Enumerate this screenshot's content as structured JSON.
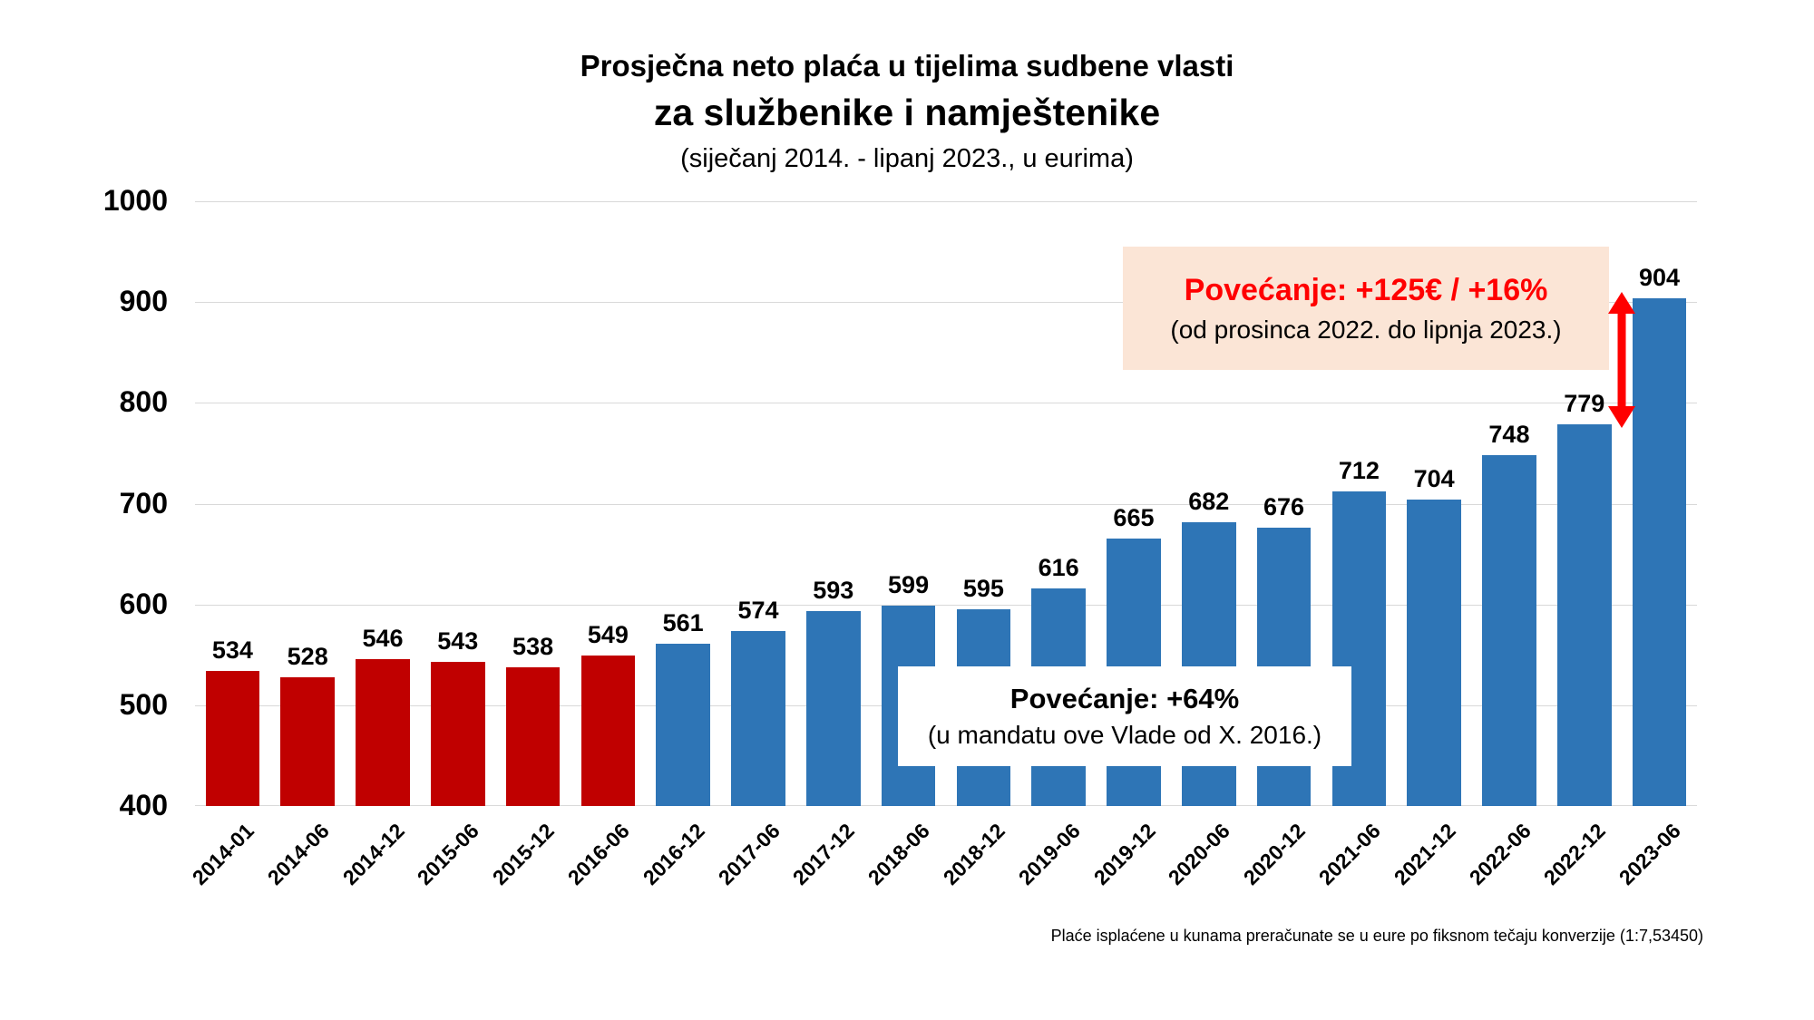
{
  "chart_data": {
    "type": "bar",
    "title_lines": [
      "Prosječna neto plaća u tijelima sudbene vlasti",
      "za službenike i namještenike",
      "(siječanj 2014. - lipanj 2023., u eurima)"
    ],
    "categories": [
      "2014-01",
      "2014-06",
      "2014-12",
      "2015-06",
      "2015-12",
      "2016-06",
      "2016-12",
      "2017-06",
      "2017-12",
      "2018-06",
      "2018-12",
      "2019-06",
      "2019-12",
      "2020-06",
      "2020-12",
      "2021-06",
      "2021-12",
      "2022-06",
      "2022-12",
      "2023-06"
    ],
    "values": [
      534,
      528,
      546,
      543,
      538,
      549,
      561,
      574,
      593,
      599,
      595,
      616,
      665,
      682,
      676,
      712,
      704,
      748,
      779,
      904
    ],
    "red_bar_count": 6,
    "colors": {
      "highlight_red": "#c00000",
      "primary_blue": "#2e75b6",
      "grid": "#d9d9d9",
      "annotation_bg": "#fbe5d6",
      "accent_red": "#ff0000"
    },
    "ylim": [
      400,
      1000
    ],
    "yticks": [
      400,
      500,
      600,
      700,
      800,
      900,
      1000
    ],
    "grid": true,
    "value_labels": true,
    "legend_position": "none",
    "xlabel": "",
    "ylabel": ""
  },
  "annotations": {
    "increase_recent": {
      "line1": "Povećanje: +125€ / +16%",
      "line2": "(od prosinca 2022. do lipnja 2023.)"
    },
    "increase_mandate": {
      "line1": "Povećanje: +64%",
      "line2": "(u mandatu ove Vlade od X. 2016.)"
    }
  },
  "footer": "Plaće isplaćene u kunama preračunate se u eure po fiksnom tečaju konverzije (1:7,53450)"
}
